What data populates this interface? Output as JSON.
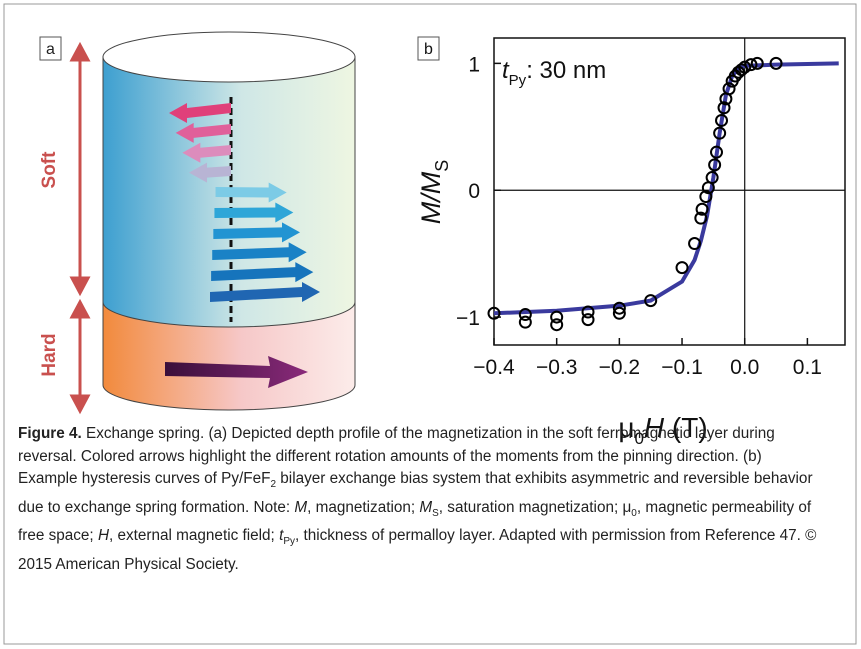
{
  "panel_a": {
    "label": "a",
    "soft": "Soft",
    "hard": "Hard"
  },
  "chart_data": {
    "type": "scatter",
    "panel_label": "b",
    "annotation": {
      "var": "t",
      "sub": "Py",
      "rest": ": 30 nm"
    },
    "y_label": {
      "main": "M/M",
      "sub": "S"
    },
    "x_label": {
      "mu": "μ",
      "sub": "0",
      "var": "H",
      "unit": " (T)"
    },
    "xlim": [
      -0.4,
      0.16
    ],
    "ylim": [
      -1.22,
      1.2
    ],
    "xticks": [
      {
        "value": -0.4,
        "label": "−0.4"
      },
      {
        "value": -0.3,
        "label": "−0.3"
      },
      {
        "value": -0.2,
        "label": "−0.2"
      },
      {
        "value": -0.1,
        "label": "−0.1"
      },
      {
        "value": 0,
        "label": "0.0"
      },
      0.1
    ],
    "yticks": [
      {
        "value": -1,
        "label": "−1"
      },
      0,
      1
    ],
    "points": {
      "color": "#000000",
      "x": [
        -0.4,
        -0.35,
        -0.35,
        -0.3,
        -0.3,
        -0.25,
        -0.25,
        -0.2,
        -0.2,
        -0.15,
        -0.1,
        -0.08,
        -0.07,
        -0.068,
        -0.062,
        -0.058,
        -0.052,
        -0.048,
        -0.045,
        -0.04,
        -0.037,
        -0.033,
        -0.03,
        -0.025,
        -0.02,
        -0.015,
        -0.01,
        -0.005,
        0,
        0.01,
        0.02,
        0.05
      ],
      "y": [
        -0.97,
        -1.04,
        -0.98,
        -1.06,
        -1.0,
        -1.02,
        -0.96,
        -0.97,
        -0.93,
        -0.87,
        -0.61,
        -0.42,
        -0.22,
        -0.15,
        -0.05,
        0.02,
        0.1,
        0.2,
        0.3,
        0.45,
        0.55,
        0.65,
        0.72,
        0.8,
        0.86,
        0.9,
        0.93,
        0.95,
        0.97,
        0.99,
        1.0,
        1.0
      ]
    },
    "curve": {
      "color": "#3a3a9e",
      "x": [
        -0.4,
        -0.3,
        -0.2,
        -0.15,
        -0.1,
        -0.08,
        -0.07,
        -0.06,
        -0.05,
        -0.04,
        -0.03,
        -0.02,
        -0.01,
        0,
        0.05,
        0.15
      ],
      "y": [
        -0.97,
        -0.95,
        -0.91,
        -0.87,
        -0.72,
        -0.55,
        -0.4,
        -0.2,
        0.1,
        0.45,
        0.75,
        0.9,
        0.96,
        0.98,
        0.99,
        1.0
      ]
    }
  },
  "caption": [
    "Figure 4.",
    " Exchange spring. (a) Depicted depth profile of the magnetization in the soft ferromagnetic layer during reversal. Colored arrows highlight the different rotation amounts of the moments from the pinning direction. (b) Example hysteresis curves of Py/FeF",
    "2",
    " bilayer exchange bias system that exhibits asymmetric and reversible behavior due to exchange spring formation. Note: ",
    "M",
    ", magnetization; ",
    "M",
    "S",
    ", saturation magnetization; μ",
    "0",
    ", magnetic permeability of free space; ",
    "H",
    ", external magnetic field; ",
    "t",
    "Py",
    ", thickness of permalloy layer. Adapted with permission from Reference 47. © 2015 American Physical Society."
  ]
}
